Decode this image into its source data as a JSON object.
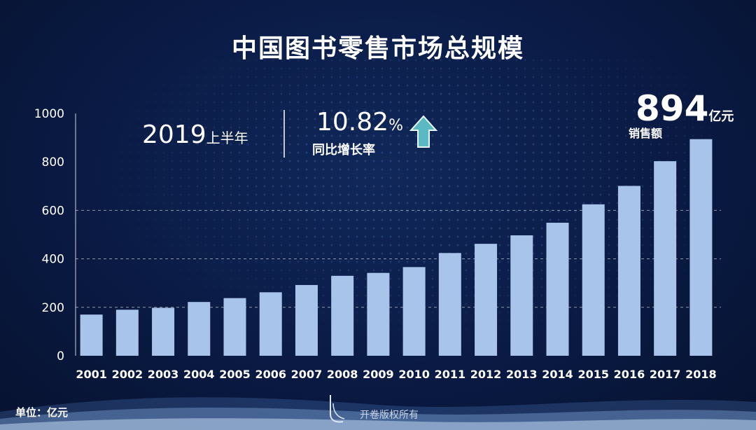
{
  "title": "中国图书零售市场总规模",
  "highlight": {
    "year": "2019",
    "year_suffix": "上半年",
    "growth_value": "10.82",
    "growth_unit": "%",
    "growth_label": "同比增长率",
    "total_value": "894",
    "total_unit": "亿元",
    "total_label": "销售额",
    "arrow_icon": "arrow-up-icon"
  },
  "footer": {
    "unit_label": "单位：亿元",
    "copyright": "开卷版权所有"
  },
  "colors": {
    "background": "#0a1a44",
    "bar": "#a9c4ea",
    "arrow": "#5ab9c2"
  },
  "chart_data": {
    "type": "bar",
    "title": "中国图书零售市场总规模",
    "xlabel": "",
    "ylabel": "",
    "unit": "亿元",
    "ylim": [
      0,
      1000
    ],
    "yticks": [
      0,
      200,
      400,
      600,
      800,
      1000
    ],
    "grid": "dashed horizontal at 200, 400, 600",
    "categories": [
      "2001",
      "2002",
      "2003",
      "2004",
      "2005",
      "2006",
      "2007",
      "2008",
      "2009",
      "2010",
      "2011",
      "2012",
      "2013",
      "2014",
      "2015",
      "2016",
      "2017",
      "2018"
    ],
    "values": [
      170,
      190,
      198,
      222,
      238,
      262,
      292,
      330,
      342,
      366,
      424,
      462,
      497,
      549,
      625,
      701,
      803,
      894
    ]
  }
}
